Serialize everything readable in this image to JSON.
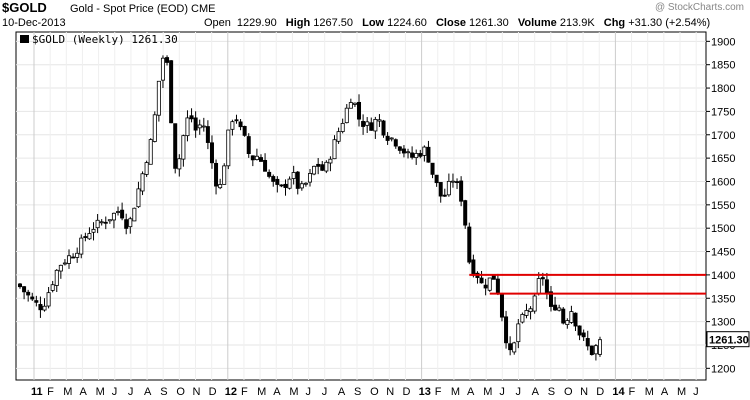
{
  "header": {
    "symbol": "$GOLD",
    "description": "Gold - Spot Price (EOD)  CME",
    "date": "10-Dec-2013",
    "watermark": "@ StockCharts.com",
    "open_label": "Open",
    "open": "1229.90",
    "high_label": "High",
    "high": "1267.50",
    "low_label": "Low",
    "low": "1224.60",
    "close_label": "Close",
    "close": "1261.30",
    "volume_label": "Volume",
    "volume": "213.9K",
    "chg_label": "Chg",
    "chg": "+31.30 (+2.54%)"
  },
  "chart_data": {
    "type": "candlestick",
    "legend": "$GOLD (Weekly) 1261.30",
    "last_value_label": "1261.30",
    "y_ticks": [
      1200,
      1250,
      1300,
      1350,
      1400,
      1450,
      1500,
      1550,
      1600,
      1650,
      1700,
      1750,
      1800,
      1850,
      1900
    ],
    "ylim": [
      1175,
      1920
    ],
    "x_tick_labels": [
      "11",
      "F",
      "M",
      "A",
      "M",
      "J",
      "J",
      "A",
      "S",
      "O",
      "N",
      "D",
      "12",
      "F",
      "M",
      "A",
      "M",
      "J",
      "J",
      "A",
      "S",
      "O",
      "N",
      "D",
      "13",
      "F",
      "M",
      "A",
      "M",
      "J",
      "J",
      "A",
      "S",
      "O",
      "N",
      "D",
      "14",
      "F",
      "M",
      "A",
      "M",
      "J"
    ],
    "x_year_labels": [
      "11",
      "12",
      "13",
      "14"
    ],
    "resistance_lines": [
      {
        "value": 1400,
        "from_week": 110,
        "to_week": 999
      },
      {
        "value": 1360,
        "from_week": 115,
        "to_week": 999
      }
    ],
    "anchors": [
      [
        0,
        1380
      ],
      [
        4,
        1340
      ],
      [
        6,
        1330
      ],
      [
        10,
        1420
      ],
      [
        14,
        1450
      ],
      [
        18,
        1500
      ],
      [
        22,
        1520
      ],
      [
        25,
        1540
      ],
      [
        27,
        1500
      ],
      [
        30,
        1600
      ],
      [
        33,
        1700
      ],
      [
        34,
        1780
      ],
      [
        35,
        1850
      ],
      [
        36,
        1880
      ],
      [
        37,
        1820
      ],
      [
        38,
        1650
      ],
      [
        39,
        1620
      ],
      [
        40,
        1680
      ],
      [
        42,
        1750
      ],
      [
        43,
        1720
      ],
      [
        44,
        1700
      ],
      [
        45,
        1740
      ],
      [
        46,
        1700
      ],
      [
        48,
        1620
      ],
      [
        49,
        1580
      ],
      [
        50,
        1600
      ],
      [
        51,
        1680
      ],
      [
        52,
        1720
      ],
      [
        53,
        1750
      ],
      [
        54,
        1720
      ],
      [
        56,
        1680
      ],
      [
        57,
        1640
      ],
      [
        58,
        1660
      ],
      [
        60,
        1640
      ],
      [
        62,
        1600
      ],
      [
        64,
        1580
      ],
      [
        66,
        1600
      ],
      [
        67,
        1620
      ],
      [
        69,
        1580
      ],
      [
        71,
        1600
      ],
      [
        73,
        1640
      ],
      [
        75,
        1620
      ],
      [
        77,
        1670
      ],
      [
        79,
        1720
      ],
      [
        80,
        1740
      ],
      [
        81,
        1770
      ],
      [
        82,
        1790
      ],
      [
        83,
        1740
      ],
      [
        85,
        1720
      ],
      [
        87,
        1720
      ],
      [
        88,
        1740
      ],
      [
        90,
        1700
      ],
      [
        92,
        1690
      ],
      [
        94,
        1670
      ],
      [
        96,
        1650
      ],
      [
        98,
        1660
      ],
      [
        100,
        1670
      ],
      [
        101,
        1630
      ],
      [
        103,
        1580
      ],
      [
        104,
        1560
      ],
      [
        106,
        1600
      ],
      [
        107,
        1610
      ],
      [
        108,
        1570
      ],
      [
        109,
        1560
      ],
      [
        110,
        1460
      ],
      [
        111,
        1400
      ],
      [
        112,
        1420
      ],
      [
        113,
        1380
      ],
      [
        115,
        1380
      ],
      [
        116,
        1400
      ],
      [
        117,
        1390
      ],
      [
        118,
        1340
      ],
      [
        119,
        1290
      ],
      [
        120,
        1240
      ],
      [
        121,
        1220
      ],
      [
        122,
        1280
      ],
      [
        123,
        1310
      ],
      [
        124,
        1300
      ],
      [
        125,
        1340
      ],
      [
        126,
        1320
      ],
      [
        127,
        1370
      ],
      [
        128,
        1400
      ],
      [
        129,
        1390
      ],
      [
        130,
        1330
      ],
      [
        131,
        1320
      ],
      [
        132,
        1350
      ],
      [
        133,
        1310
      ],
      [
        134,
        1290
      ],
      [
        135,
        1330
      ],
      [
        136,
        1320
      ],
      [
        137,
        1280
      ],
      [
        138,
        1270
      ],
      [
        139,
        1250
      ],
      [
        140,
        1240
      ],
      [
        141,
        1230
      ],
      [
        142,
        1261
      ]
    ],
    "final_bar": {
      "open": 1229.9,
      "high": 1267.5,
      "low": 1224.6,
      "close": 1261.3
    }
  }
}
